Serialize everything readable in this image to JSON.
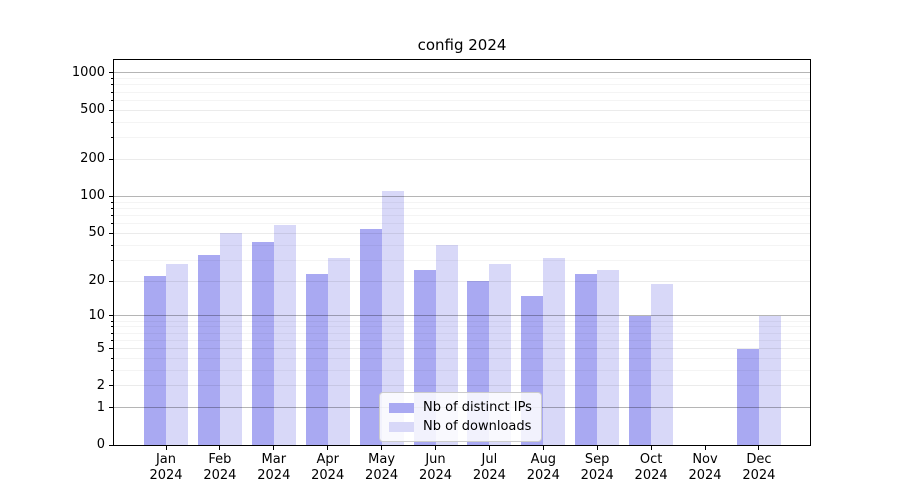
{
  "chart_data": {
    "type": "bar",
    "title": "config 2024",
    "categories": [
      "Jan 2024",
      "Feb 2024",
      "Mar 2024",
      "Apr 2024",
      "May 2024",
      "Jun 2024",
      "Jul 2024",
      "Aug 2024",
      "Sep 2024",
      "Oct 2024",
      "Nov 2024",
      "Dec 2024"
    ],
    "month_labels": [
      "Jan",
      "Feb",
      "Mar",
      "Apr",
      "May",
      "Jun",
      "Jul",
      "Aug",
      "Sep",
      "Oct",
      "Nov",
      "Dec"
    ],
    "year_label": "2024",
    "series": [
      {
        "name": "Nb of distinct IPs",
        "color": "#a9a9f2",
        "values": [
          22,
          33,
          42,
          23,
          54,
          25,
          20,
          15,
          23,
          10,
          0,
          5
        ]
      },
      {
        "name": "Nb of downloads",
        "color": "#d8d8f8",
        "values": [
          28,
          50,
          58,
          31,
          110,
          40,
          28,
          31,
          25,
          19,
          0,
          10
        ]
      }
    ],
    "yscale": "log1p",
    "ylim": [
      0,
      1250
    ],
    "yticks": [
      0,
      1,
      2,
      5,
      10,
      20,
      50,
      100,
      200,
      500,
      1000
    ],
    "ytick_labels": [
      "0",
      "1",
      "2",
      "5",
      "10",
      "20",
      "50",
      "100",
      "200",
      "500",
      "1000"
    ],
    "decade_yticks": [
      1,
      10,
      100,
      1000
    ],
    "minor_yticks": [
      3,
      4,
      6,
      7,
      8,
      9,
      30,
      40,
      60,
      70,
      80,
      90,
      300,
      400,
      600,
      700,
      800,
      900
    ],
    "grid": true,
    "legend": {
      "position": "lower center inside"
    }
  },
  "colors": {
    "background": "#ffffff",
    "spine": "#000000",
    "grid_decade": "rgba(0,0,0,0.29)",
    "grid_labeled": "rgba(0,0,0,0.08)",
    "grid_minor": "rgba(0,0,0,0.045)",
    "bar_distinct_ips": "#a9a9f2",
    "bar_downloads": "#d8d8f8",
    "text": "#000000"
  }
}
